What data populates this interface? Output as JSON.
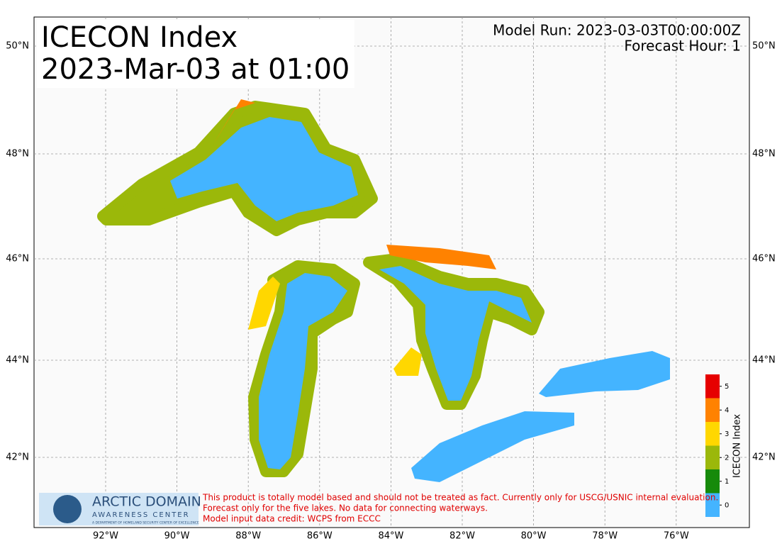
{
  "header": {
    "title": "ICECON Index",
    "subtitle": "2023-Mar-03 at 01:00",
    "model_run": "Model Run: 2023-03-03T00:00:00Z",
    "forecast_hour": "Forecast Hour: 1"
  },
  "map": {
    "lon_labels": [
      "92°W",
      "90°W",
      "88°W",
      "86°W",
      "84°W",
      "82°W",
      "80°W",
      "78°W",
      "76°W"
    ],
    "lat_labels": [
      "50°N",
      "48°N",
      "46°N",
      "44°N",
      "42°N"
    ]
  },
  "legend": {
    "title": "ICECON Index",
    "levels": [
      {
        "value": 0,
        "color": "#44b4ff"
      },
      {
        "value": 1,
        "color": "#168a0a"
      },
      {
        "value": 2,
        "color": "#9bb80a"
      },
      {
        "value": 3,
        "color": "#ffd700"
      },
      {
        "value": 4,
        "color": "#ff8200"
      },
      {
        "value": 5,
        "color": "#e60000"
      }
    ]
  },
  "footer": {
    "logo_title": "ARCTIC DOMAIN",
    "logo_subtitle": "AWARENESS CENTER",
    "logo_caption": "A DEPARTMENT OF HOMELAND SECURITY CENTER OF EXCELLENCE",
    "disclaimer": [
      "This product is totally model based and should not be treated as fact. Currently only for USCG/USNIC internal evaluation.",
      "Forecast only for the five lakes. No data for connecting waterways.",
      "Model input data credit: WCPS from ECCC"
    ]
  }
}
